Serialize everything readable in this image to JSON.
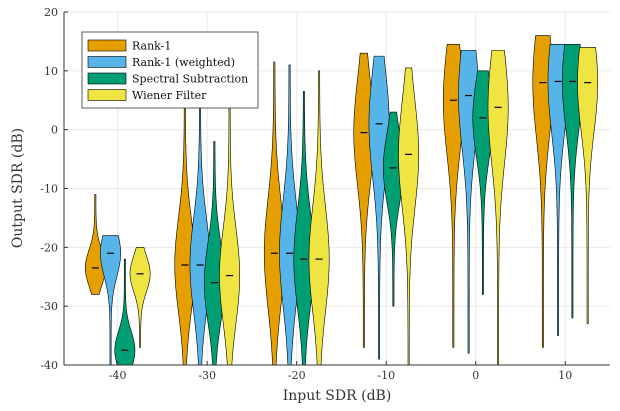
{
  "chart_data": {
    "type": "violin",
    "xlabel": "Input SDR (dB)",
    "ylabel": "Output SDR (dB)",
    "xlim": [
      -46,
      15
    ],
    "ylim": [
      -40,
      20
    ],
    "xticks": [
      -40,
      -30,
      -20,
      -10,
      0,
      10
    ],
    "xtick_labels": [
      "-40",
      "-30",
      "-20",
      "-10",
      "0",
      "10"
    ],
    "yticks": [
      -40,
      -30,
      -20,
      -10,
      0,
      10,
      20
    ],
    "ytick_labels": [
      "-40",
      "-30",
      "-20",
      "-10",
      "0",
      "10",
      "20"
    ],
    "grid": true,
    "legend_position": "top-left",
    "series": [
      {
        "name": "Rank-1",
        "color": "#E69F00",
        "groups": [
          {
            "x": -42.5,
            "min": -28,
            "max": -11,
            "median": -23.5
          },
          {
            "x": -32.5,
            "min": -40,
            "max": 5,
            "median": -23
          },
          {
            "x": -22.5,
            "min": -40,
            "max": 11.5,
            "median": -21
          },
          {
            "x": -12.5,
            "min": -37,
            "max": 13,
            "median": -0.5
          },
          {
            "x": -2.5,
            "min": -37,
            "max": 14.5,
            "median": 5
          },
          {
            "x": 7.5,
            "min": -37,
            "max": 16,
            "median": 8
          }
        ]
      },
      {
        "name": "Rank-1 (weighted)",
        "color": "#56B4E9",
        "groups": [
          {
            "x": -40.8,
            "min": -40,
            "max": -18,
            "median": -21
          },
          {
            "x": -30.8,
            "min": -40,
            "max": 5,
            "median": -23
          },
          {
            "x": -20.8,
            "min": -40,
            "max": 11,
            "median": -21
          },
          {
            "x": -10.8,
            "min": -39,
            "max": 12.5,
            "median": 1
          },
          {
            "x": -0.8,
            "min": -38,
            "max": 13.5,
            "median": 5.8
          },
          {
            "x": 9.2,
            "min": -35,
            "max": 14.5,
            "median": 8.2
          }
        ]
      },
      {
        "name": "Spectral Subtraction",
        "color": "#009E73",
        "groups": [
          {
            "x": -39.2,
            "min": -40,
            "max": -22,
            "median": -37.5
          },
          {
            "x": -29.2,
            "min": -40,
            "max": -2,
            "median": -26
          },
          {
            "x": -19.2,
            "min": -40,
            "max": 6.5,
            "median": -22
          },
          {
            "x": -9.2,
            "min": -30,
            "max": 3,
            "median": -6.5
          },
          {
            "x": 0.8,
            "min": -28,
            "max": 10,
            "median": 2
          },
          {
            "x": 10.8,
            "min": -32,
            "max": 14.5,
            "median": 8.2
          }
        ]
      },
      {
        "name": "Wiener Filter",
        "color": "#F0E442",
        "groups": [
          {
            "x": -37.5,
            "min": -37,
            "max": -20,
            "median": -24.5
          },
          {
            "x": -27.5,
            "min": -40,
            "max": 5,
            "median": -24.8
          },
          {
            "x": -17.5,
            "min": -40,
            "max": 10,
            "median": -22
          },
          {
            "x": -7.5,
            "min": -40,
            "max": 10.5,
            "median": -4.2
          },
          {
            "x": 2.5,
            "min": -40,
            "max": 13.5,
            "median": 3.8
          },
          {
            "x": 12.5,
            "min": -33,
            "max": 14,
            "median": 8
          }
        ]
      }
    ]
  }
}
